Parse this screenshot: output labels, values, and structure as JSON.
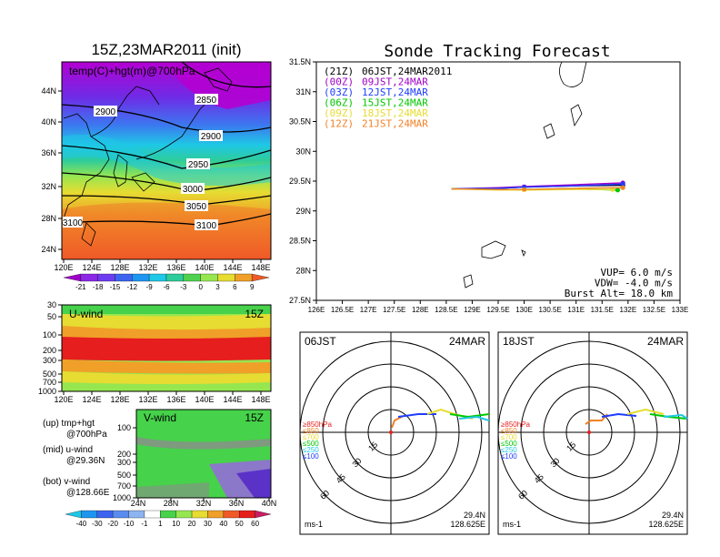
{
  "map_panel": {
    "title": "15Z,23MAR2011 (init)",
    "label": "temp(C)+hgt(m)@700hPa",
    "lat_labels": [
      "44N",
      "40N",
      "36N",
      "32N",
      "28N",
      "24N"
    ],
    "lon_labels": [
      "120E",
      "124E",
      "128E",
      "132E",
      "136E",
      "140E",
      "144E",
      "148E"
    ],
    "contours": [
      "2850",
      "2900",
      "2900",
      "2950",
      "3000",
      "3050",
      "3100",
      "3100"
    ],
    "colorbar_labels": [
      "-21",
      "-18",
      "-15",
      "-12",
      "-9",
      "-6",
      "-3",
      "0",
      "3",
      "6",
      "9"
    ]
  },
  "u_panel": {
    "label": "U-wind",
    "time": "15Z",
    "levels": [
      "30",
      "50",
      "100",
      "200",
      "300",
      "500",
      "700",
      "1000"
    ],
    "lon_labels": [
      "120E",
      "124E",
      "128E",
      "132E",
      "136E",
      "140E",
      "144E",
      "148E"
    ]
  },
  "v_panel": {
    "label": "V-wind",
    "time": "15Z",
    "levels": [
      "100",
      "200",
      "300",
      "500",
      "700",
      "1000"
    ],
    "lat_labels": [
      "24N",
      "28N",
      "32N",
      "36N",
      "40N"
    ],
    "colorbar_labels": [
      "-40",
      "-30",
      "-20",
      "-10",
      "-1",
      "1",
      "10",
      "20",
      "30",
      "40",
      "50",
      "60"
    ]
  },
  "legend_notes": [
    {
      "a": "(up) tmp+hgt",
      "b": "@700hPa"
    },
    {
      "a": "(mid) u-wind",
      "b": "@29.36N"
    },
    {
      "a": "(bot) v-wind",
      "b": "@128.66E"
    }
  ],
  "track_panel": {
    "title": "Sonde Tracking Forecast",
    "legend": [
      {
        "code": "(21Z)",
        "text": "06JST,24MAR2011",
        "color": "#000000"
      },
      {
        "code": "(00Z)",
        "text": "09JST,24MAR",
        "color": "#a000c8"
      },
      {
        "code": "(03Z)",
        "text": "12JST,24MAR",
        "color": "#1e3cff"
      },
      {
        "code": "(06Z)",
        "text": "15JST,24MAR",
        "color": "#00c800"
      },
      {
        "code": "(09Z)",
        "text": "18JST,24MAR",
        "color": "#e6dc32"
      },
      {
        "code": "(12Z)",
        "text": "21JST,24MAR",
        "color": "#f08228"
      }
    ],
    "lat_labels": [
      "31.5N",
      "31N",
      "30.5N",
      "30N",
      "29.5N",
      "29N",
      "28.5N",
      "28N",
      "27.5N"
    ],
    "lon_labels": [
      "126E",
      "126.5E",
      "127E",
      "127.5E",
      "128E",
      "128.5E",
      "129E",
      "129.5E",
      "130E",
      "130.5E",
      "131E",
      "131.5E",
      "132E",
      "132.5E",
      "133E"
    ],
    "params": [
      "VUP= 6.0 m/s",
      "VDW= -4.0 m/s",
      "Burst Alt= 18.0 km"
    ]
  },
  "polar_panels": [
    {
      "time": "06JST",
      "date": "24MAR",
      "loc_lat": "29.4N",
      "loc_lon": "128.625E",
      "unit": "ms-1"
    },
    {
      "time": "18JST",
      "date": "24MAR",
      "loc_lat": "29.4N",
      "loc_lon": "128.625E",
      "unit": "ms-1"
    }
  ],
  "polar_rings": [
    "15",
    "30",
    "45",
    "60"
  ],
  "polar_levels": [
    {
      "text": "≥850hPa",
      "color": "#e61e1e"
    },
    {
      "text": "≤850",
      "color": "#f08228"
    },
    {
      "text": "≤700",
      "color": "#e6dc32"
    },
    {
      "text": "≤500",
      "color": "#00c800"
    },
    {
      "text": "≤250",
      "color": "#1ec8e6"
    },
    {
      "text": "≤100",
      "color": "#1e3cff"
    }
  ],
  "chart_data": [
    {
      "type": "line",
      "title": "Sonde Tracking Forecast",
      "xlim": [
        126,
        133
      ],
      "ylim": [
        27.5,
        31.5
      ],
      "series": [
        {
          "name": "(21Z) 06JST,24MAR2011",
          "color": "#000000",
          "points": [
            [
              128.6,
              29.37
            ],
            [
              129.5,
              29.38
            ],
            [
              130.0,
              29.4
            ],
            [
              131.0,
              29.42
            ],
            [
              131.9,
              29.43
            ]
          ]
        },
        {
          "name": "(00Z) 09JST,24MAR",
          "color": "#a000c8",
          "points": [
            [
              128.6,
              29.37
            ],
            [
              129.5,
              29.39
            ],
            [
              130.0,
              29.41
            ],
            [
              131.0,
              29.44
            ],
            [
              131.9,
              29.47
            ]
          ]
        },
        {
          "name": "(03Z) 12JST,24MAR",
          "color": "#1e3cff",
          "points": [
            [
              128.6,
              29.37
            ],
            [
              129.5,
              29.38
            ],
            [
              130.0,
              29.4
            ],
            [
              131.0,
              29.42
            ],
            [
              131.9,
              29.45
            ]
          ]
        },
        {
          "name": "(06Z) 15JST,24MAR",
          "color": "#00c800",
          "points": [
            [
              128.6,
              29.37
            ],
            [
              129.5,
              29.36
            ],
            [
              130.0,
              29.36
            ],
            [
              131.0,
              29.37
            ],
            [
              131.8,
              29.35
            ]
          ]
        },
        {
          "name": "(09Z) 18JST,24MAR",
          "color": "#e6dc32",
          "points": [
            [
              128.6,
              29.37
            ],
            [
              129.5,
              29.35
            ],
            [
              130.0,
              29.35
            ],
            [
              131.0,
              29.36
            ],
            [
              131.7,
              29.36
            ]
          ]
        },
        {
          "name": "(12Z) 21JST,24MAR",
          "color": "#f08228",
          "points": [
            [
              128.6,
              29.37
            ],
            [
              129.5,
              29.36
            ],
            [
              130.0,
              29.36
            ],
            [
              131.0,
              29.38
            ],
            [
              131.9,
              29.39
            ]
          ]
        }
      ]
    }
  ]
}
